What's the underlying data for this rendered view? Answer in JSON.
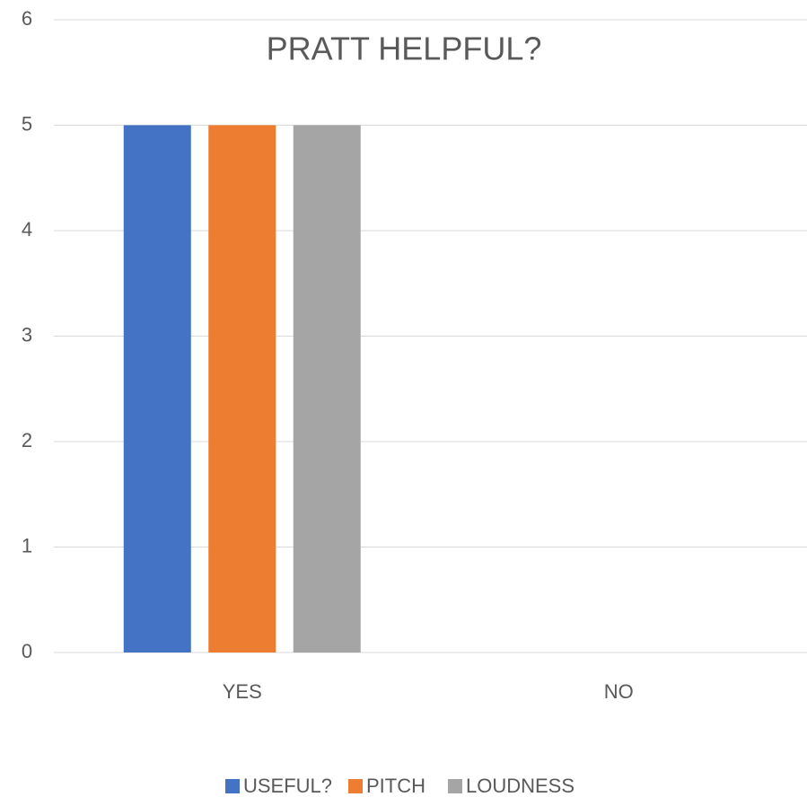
{
  "chart_data": {
    "type": "bar",
    "title": "PRATT HELPFUL?",
    "categories": [
      "YES",
      "NO"
    ],
    "series": [
      {
        "name": "USEFUL?",
        "color": "#4472c4",
        "values": [
          5,
          0
        ]
      },
      {
        "name": "PITCH",
        "color": "#ed7d31",
        "values": [
          5,
          0
        ]
      },
      {
        "name": "LOUDNESS",
        "color": "#a5a5a5",
        "values": [
          5,
          0
        ]
      }
    ],
    "ylim": [
      0,
      6
    ],
    "yticks": [
      0,
      1,
      2,
      3,
      4,
      5,
      6
    ],
    "grid": true,
    "legend": "bottom"
  }
}
